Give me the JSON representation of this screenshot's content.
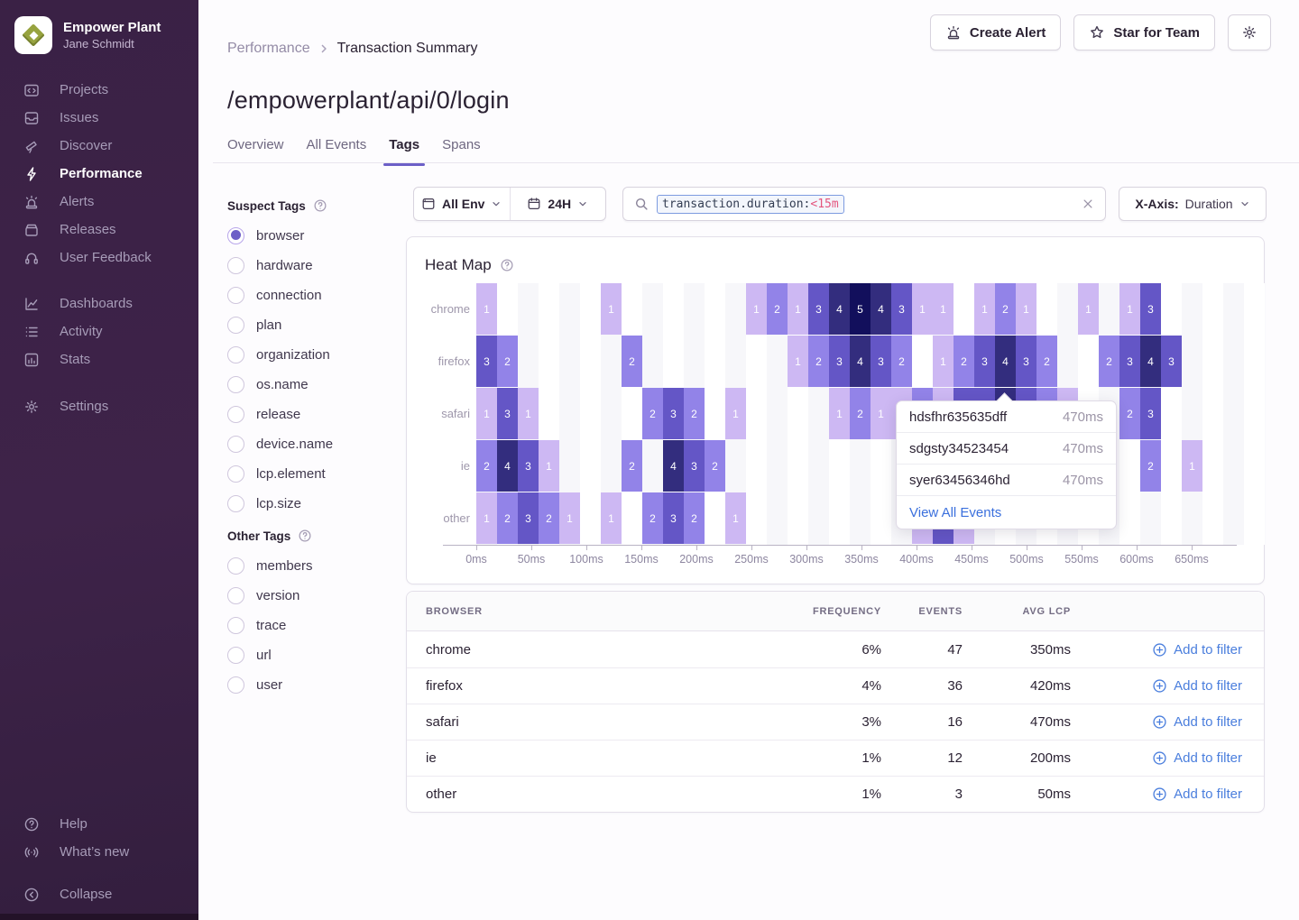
{
  "sidebar": {
    "org_name": "Empower Plant",
    "user_name": "Jane Schmidt",
    "main_items": [
      {
        "label": "Projects",
        "icon": "projects-icon",
        "active": false
      },
      {
        "label": "Issues",
        "icon": "issues-icon",
        "active": false
      },
      {
        "label": "Discover",
        "icon": "discover-icon",
        "active": false
      },
      {
        "label": "Performance",
        "icon": "performance-icon",
        "active": true
      },
      {
        "label": "Alerts",
        "icon": "alerts-icon",
        "active": false
      },
      {
        "label": "Releases",
        "icon": "releases-icon",
        "active": false
      },
      {
        "label": "User Feedback",
        "icon": "feedback-icon",
        "active": false
      }
    ],
    "secondary_items": [
      {
        "label": "Dashboards",
        "icon": "dashboards-icon",
        "active": false
      },
      {
        "label": "Activity",
        "icon": "activity-icon",
        "active": false
      },
      {
        "label": "Stats",
        "icon": "stats-icon",
        "active": false
      }
    ],
    "settings_items": [
      {
        "label": "Settings",
        "icon": "settings-icon",
        "active": false
      }
    ],
    "footer_items": [
      {
        "label": "Help",
        "icon": "help-icon",
        "active": false
      },
      {
        "label": "What’s new",
        "icon": "whats-new-icon",
        "active": false
      }
    ],
    "collapse_label": "Collapse"
  },
  "header": {
    "breadcrumb": [
      "Performance",
      "Transaction Summary"
    ],
    "title": "/empowerplant/api/0/login",
    "tabs": [
      {
        "label": "Overview",
        "active": false
      },
      {
        "label": "All Events",
        "active": false
      },
      {
        "label": "Tags",
        "active": true
      },
      {
        "label": "Spans",
        "active": false
      }
    ],
    "actions": {
      "create_alert": "Create Alert",
      "star_for_team": "Star for Team"
    }
  },
  "filters": {
    "suspect_title": "Suspect Tags",
    "suspect_tags": [
      "browser",
      "hardware",
      "connection",
      "plan",
      "organization",
      "os.name",
      "release",
      "device.name",
      "lcp.element",
      "lcp.size"
    ],
    "selected_tag": "browser",
    "other_title": "Other Tags",
    "other_tags": [
      "members",
      "version",
      "trace",
      "url",
      "user"
    ]
  },
  "controls": {
    "environment": "All Env",
    "time_range": "24H",
    "search_token_key": "transaction.duration:",
    "search_token_value": "<15m",
    "xaxis_label": "X-Axis:",
    "xaxis_value": "Duration"
  },
  "chart_data": {
    "type": "heatmap",
    "title": "Heat Map",
    "x_ticks": [
      "0ms",
      "50ms",
      "100ms",
      "150ms",
      "200ms",
      "250ms",
      "300ms",
      "350ms",
      "400ms",
      "450ms",
      "500ms",
      "550ms",
      "600ms",
      "650ms"
    ],
    "columns": 38,
    "color_scale": {
      "1": "#CDB8F3",
      "2": "#9283E8",
      "3": "#6456C6",
      "4": "#332D7E",
      "5": "#120F5C"
    },
    "rows": [
      {
        "label": "chrome",
        "cells": [
          [
            0,
            1
          ],
          [
            6,
            1
          ],
          [
            13,
            1
          ],
          [
            14,
            2
          ],
          [
            15,
            1
          ],
          [
            16,
            3
          ],
          [
            17,
            4
          ],
          [
            18,
            5
          ],
          [
            19,
            4
          ],
          [
            20,
            3
          ],
          [
            21,
            1
          ],
          [
            22,
            1
          ],
          [
            24,
            1
          ],
          [
            25,
            2
          ],
          [
            26,
            1
          ],
          [
            29,
            1
          ],
          [
            31,
            1
          ],
          [
            32,
            3
          ]
        ]
      },
      {
        "label": "firefox",
        "cells": [
          [
            0,
            3
          ],
          [
            1,
            2
          ],
          [
            7,
            2
          ],
          [
            15,
            1
          ],
          [
            16,
            2
          ],
          [
            17,
            3
          ],
          [
            18,
            4
          ],
          [
            19,
            3
          ],
          [
            20,
            2
          ],
          [
            22,
            1
          ],
          [
            23,
            2
          ],
          [
            24,
            3
          ],
          [
            25,
            4
          ],
          [
            26,
            3
          ],
          [
            27,
            2
          ],
          [
            30,
            2
          ],
          [
            31,
            3
          ],
          [
            32,
            4
          ],
          [
            33,
            3
          ]
        ]
      },
      {
        "label": "safari",
        "cells": [
          [
            0,
            1
          ],
          [
            1,
            3
          ],
          [
            2,
            1
          ],
          [
            8,
            2
          ],
          [
            9,
            3
          ],
          [
            10,
            2
          ],
          [
            12,
            1
          ],
          [
            17,
            1
          ],
          [
            18,
            2
          ],
          [
            19,
            1
          ],
          [
            20,
            1
          ],
          [
            21,
            2
          ],
          [
            22,
            1
          ],
          [
            23,
            3
          ],
          [
            24,
            3
          ],
          [
            25,
            4
          ],
          [
            26,
            3
          ],
          [
            27,
            2
          ],
          [
            28,
            1
          ],
          [
            31,
            2
          ],
          [
            32,
            3
          ]
        ]
      },
      {
        "label": "ie",
        "cells": [
          [
            0,
            2
          ],
          [
            1,
            4
          ],
          [
            2,
            3
          ],
          [
            3,
            1
          ],
          [
            7,
            2
          ],
          [
            9,
            4
          ],
          [
            10,
            3
          ],
          [
            11,
            2
          ],
          [
            32,
            2
          ],
          [
            34,
            1
          ]
        ]
      },
      {
        "label": "other",
        "cells": [
          [
            0,
            1
          ],
          [
            1,
            2
          ],
          [
            2,
            3
          ],
          [
            3,
            2
          ],
          [
            4,
            1
          ],
          [
            6,
            1
          ],
          [
            8,
            2
          ],
          [
            9,
            3
          ],
          [
            10,
            2
          ],
          [
            12,
            1
          ],
          [
            21,
            1
          ],
          [
            22,
            3
          ],
          [
            23,
            1
          ]
        ]
      }
    ]
  },
  "tooltip": {
    "events": [
      {
        "id": "hdsfhr635635dff",
        "duration": "470ms"
      },
      {
        "id": "sdgsty34523454",
        "duration": "470ms"
      },
      {
        "id": "syer63456346hd",
        "duration": "470ms"
      }
    ],
    "link_label": "View All Events"
  },
  "table": {
    "headers": [
      "BROWSER",
      "FREQUENCY",
      "EVENTS",
      "AVG LCP"
    ],
    "rows": [
      {
        "browser": "chrome",
        "frequency": "6%",
        "events": "47",
        "avg_lcp": "350ms"
      },
      {
        "browser": "firefox",
        "frequency": "4%",
        "events": "36",
        "avg_lcp": "420ms"
      },
      {
        "browser": "safari",
        "frequency": "3%",
        "events": "16",
        "avg_lcp": "470ms"
      },
      {
        "browser": "ie",
        "frequency": "1%",
        "events": "12",
        "avg_lcp": "200ms"
      },
      {
        "browser": "other",
        "frequency": "1%",
        "events": "3",
        "avg_lcp": "50ms"
      }
    ],
    "action_label": "Add to filter"
  }
}
